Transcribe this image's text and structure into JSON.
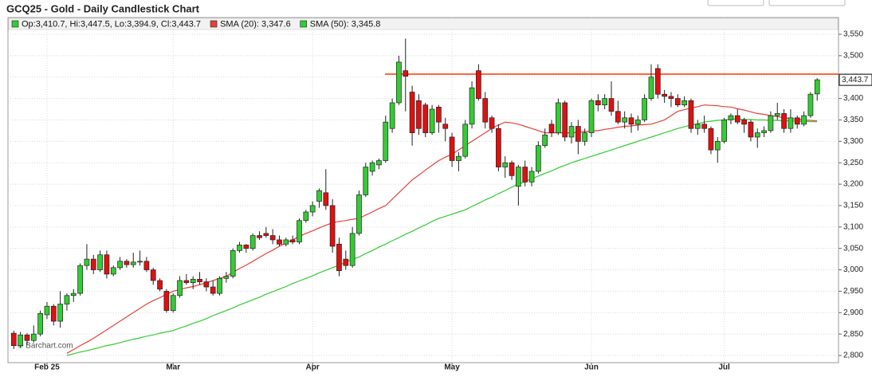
{
  "chart_data": {
    "type": "candlestick",
    "title": "GCQ25 - Gold - Daily Candlestick Chart",
    "ohlc_label": "Op:3,410.7, Hi:3,447.5, Lo:3,394.9, Cl:3,443.7",
    "last_label": "3,443.7",
    "watermark": "© Barchart.com",
    "up_color": "#33cc33",
    "down_color": "#e01010",
    "resistance": {
      "value": 3457,
      "color": "#ff3300"
    },
    "ylim": [
      2800,
      3594
    ],
    "yticks": [
      {
        "value": 2800,
        "label": "2,800"
      },
      {
        "value": 2850,
        "label": "2,850"
      },
      {
        "value": 2900,
        "label": "2,900"
      },
      {
        "value": 2950,
        "label": "2,950"
      },
      {
        "value": 3000,
        "label": "3,000"
      },
      {
        "value": 3050,
        "label": "3,050"
      },
      {
        "value": 3100,
        "label": "3,100"
      },
      {
        "value": 3150,
        "label": "3,150"
      },
      {
        "value": 3200,
        "label": "3,200"
      },
      {
        "value": 3250,
        "label": "3,250"
      },
      {
        "value": 3300,
        "label": "3,300"
      },
      {
        "value": 3350,
        "label": "3,350"
      },
      {
        "value": 3400,
        "label": "3,400"
      },
      {
        "value": 3450,
        "label": "3,450"
      },
      {
        "value": 3500,
        "label": "3,500"
      },
      {
        "value": 3550,
        "label": "3,550"
      }
    ],
    "grid": true,
    "categories": [
      null,
      null,
      null,
      null,
      null,
      "Feb 25",
      null,
      null,
      null,
      null,
      null,
      null,
      null,
      null,
      null,
      null,
      null,
      null,
      null,
      null,
      null,
      null,
      null,
      null,
      "Mar",
      null,
      null,
      null,
      null,
      null,
      null,
      null,
      null,
      null,
      null,
      null,
      null,
      null,
      null,
      null,
      null,
      null,
      null,
      null,
      null,
      "Apr",
      null,
      null,
      null,
      null,
      null,
      null,
      null,
      null,
      null,
      null,
      null,
      null,
      null,
      null,
      null,
      null,
      null,
      null,
      null,
      null,
      "May",
      null,
      null,
      null,
      null,
      null,
      null,
      null,
      null,
      null,
      null,
      null,
      null,
      null,
      null,
      null,
      null,
      null,
      null,
      null,
      null,
      "Jun",
      null,
      null,
      null,
      null,
      null,
      null,
      null,
      null,
      null,
      null,
      null,
      null,
      null,
      null,
      null,
      null,
      null,
      null,
      null,
      "Jul",
      null,
      null,
      null,
      null,
      null,
      null,
      null,
      null,
      null,
      null,
      null,
      null,
      null,
      null
    ],
    "candles": [
      {
        "o": 2852,
        "h": 2858,
        "l": 2815,
        "c": 2823
      },
      {
        "o": 2823,
        "h": 2855,
        "l": 2818,
        "c": 2848
      },
      {
        "o": 2848,
        "h": 2852,
        "l": 2825,
        "c": 2835
      },
      {
        "o": 2835,
        "h": 2870,
        "l": 2830,
        "c": 2850
      },
      {
        "o": 2850,
        "h": 2905,
        "l": 2845,
        "c": 2898
      },
      {
        "o": 2895,
        "h": 2925,
        "l": 2885,
        "c": 2915
      },
      {
        "o": 2915,
        "h": 2920,
        "l": 2870,
        "c": 2880
      },
      {
        "o": 2880,
        "h": 2950,
        "l": 2865,
        "c": 2920
      },
      {
        "o": 2920,
        "h": 2945,
        "l": 2905,
        "c": 2940
      },
      {
        "o": 2940,
        "h": 2955,
        "l": 2925,
        "c": 2945
      },
      {
        "o": 2945,
        "h": 3015,
        "l": 2940,
        "c": 3010
      },
      {
        "o": 3010,
        "h": 3060,
        "l": 3000,
        "c": 3025
      },
      {
        "o": 3025,
        "h": 3035,
        "l": 2990,
        "c": 3000
      },
      {
        "o": 3000,
        "h": 3045,
        "l": 2995,
        "c": 3035
      },
      {
        "o": 3035,
        "h": 3045,
        "l": 2980,
        "c": 2990
      },
      {
        "o": 2990,
        "h": 3010,
        "l": 2985,
        "c": 3005
      },
      {
        "o": 3005,
        "h": 3030,
        "l": 3000,
        "c": 3020
      },
      {
        "o": 3020,
        "h": 3025,
        "l": 3005,
        "c": 3012
      },
      {
        "o": 3012,
        "h": 3040,
        "l": 3005,
        "c": 3018
      },
      {
        "o": 3018,
        "h": 3045,
        "l": 3010,
        "c": 3020
      },
      {
        "o": 3020,
        "h": 3030,
        "l": 2995,
        "c": 3000
      },
      {
        "o": 3000,
        "h": 3005,
        "l": 2965,
        "c": 2975
      },
      {
        "o": 2975,
        "h": 2980,
        "l": 2950,
        "c": 2955
      },
      {
        "o": 2950,
        "h": 2955,
        "l": 2900,
        "c": 2905
      },
      {
        "o": 2905,
        "h": 2945,
        "l": 2900,
        "c": 2940
      },
      {
        "o": 2940,
        "h": 2985,
        "l": 2935,
        "c": 2975
      },
      {
        "o": 2975,
        "h": 2990,
        "l": 2965,
        "c": 2970
      },
      {
        "o": 2970,
        "h": 2985,
        "l": 2955,
        "c": 2978
      },
      {
        "o": 2978,
        "h": 2995,
        "l": 2965,
        "c": 2972
      },
      {
        "o": 2972,
        "h": 2980,
        "l": 2950,
        "c": 2960
      },
      {
        "o": 2960,
        "h": 2975,
        "l": 2940,
        "c": 2945
      },
      {
        "o": 2945,
        "h": 2985,
        "l": 2940,
        "c": 2980
      },
      {
        "o": 2980,
        "h": 2995,
        "l": 2970,
        "c": 2985
      },
      {
        "o": 2985,
        "h": 3050,
        "l": 2980,
        "c": 3045
      },
      {
        "o": 3045,
        "h": 3065,
        "l": 3040,
        "c": 3058
      },
      {
        "o": 3058,
        "h": 3060,
        "l": 3040,
        "c": 3050
      },
      {
        "o": 3050,
        "h": 3085,
        "l": 3045,
        "c": 3080
      },
      {
        "o": 3080,
        "h": 3090,
        "l": 3070,
        "c": 3075
      },
      {
        "o": 3085,
        "h": 3100,
        "l": 3075,
        "c": 3080
      },
      {
        "o": 3080,
        "h": 3095,
        "l": 3060,
        "c": 3070
      },
      {
        "o": 3070,
        "h": 3080,
        "l": 3055,
        "c": 3060
      },
      {
        "o": 3060,
        "h": 3075,
        "l": 3055,
        "c": 3070
      },
      {
        "o": 3070,
        "h": 3080,
        "l": 3060,
        "c": 3065
      },
      {
        "o": 3065,
        "h": 3120,
        "l": 3060,
        "c": 3115
      },
      {
        "o": 3115,
        "h": 3140,
        "l": 3110,
        "c": 3135
      },
      {
        "o": 3135,
        "h": 3160,
        "l": 3125,
        "c": 3150
      },
      {
        "o": 3160,
        "h": 3190,
        "l": 3145,
        "c": 3185
      },
      {
        "o": 3180,
        "h": 3235,
        "l": 3140,
        "c": 3150
      },
      {
        "o": 3150,
        "h": 3165,
        "l": 3040,
        "c": 3055
      },
      {
        "o": 3060,
        "h": 3075,
        "l": 2985,
        "c": 2998
      },
      {
        "o": 3025,
        "h": 3045,
        "l": 3000,
        "c": 3010
      },
      {
        "o": 3010,
        "h": 3100,
        "l": 3005,
        "c": 3085
      },
      {
        "o": 3085,
        "h": 3185,
        "l": 3080,
        "c": 3175
      },
      {
        "o": 3175,
        "h": 3250,
        "l": 3170,
        "c": 3240
      },
      {
        "o": 3230,
        "h": 3255,
        "l": 3220,
        "c": 3250
      },
      {
        "o": 3245,
        "h": 3260,
        "l": 3235,
        "c": 3255
      },
      {
        "o": 3255,
        "h": 3360,
        "l": 3250,
        "c": 3345
      },
      {
        "o": 3330,
        "h": 3400,
        "l": 3320,
        "c": 3390
      },
      {
        "o": 3390,
        "h": 3500,
        "l": 3385,
        "c": 3485
      },
      {
        "o": 3465,
        "h": 3540,
        "l": 3370,
        "c": 3452
      },
      {
        "o": 3415,
        "h": 3430,
        "l": 3290,
        "c": 3320
      },
      {
        "o": 3395,
        "h": 3410,
        "l": 3315,
        "c": 3330
      },
      {
        "o": 3385,
        "h": 3390,
        "l": 3310,
        "c": 3320
      },
      {
        "o": 3320,
        "h": 3385,
        "l": 3315,
        "c": 3375
      },
      {
        "o": 3380,
        "h": 3385,
        "l": 3320,
        "c": 3345
      },
      {
        "o": 3340,
        "h": 3355,
        "l": 3300,
        "c": 3330
      },
      {
        "o": 3310,
        "h": 3320,
        "l": 3240,
        "c": 3255
      },
      {
        "o": 3255,
        "h": 3275,
        "l": 3230,
        "c": 3265
      },
      {
        "o": 3265,
        "h": 3350,
        "l": 3260,
        "c": 3340
      },
      {
        "o": 3340,
        "h": 3440,
        "l": 3330,
        "c": 3425
      },
      {
        "o": 3465,
        "h": 3480,
        "l": 3395,
        "c": 3400
      },
      {
        "o": 3400,
        "h": 3415,
        "l": 3330,
        "c": 3345
      },
      {
        "o": 3355,
        "h": 3360,
        "l": 3320,
        "c": 3330
      },
      {
        "o": 3330,
        "h": 3340,
        "l": 3230,
        "c": 3240
      },
      {
        "o": 3240,
        "h": 3265,
        "l": 3215,
        "c": 3250
      },
      {
        "o": 3250,
        "h": 3255,
        "l": 3210,
        "c": 3220
      },
      {
        "o": 3195,
        "h": 3245,
        "l": 3150,
        "c": 3240
      },
      {
        "o": 3240,
        "h": 3255,
        "l": 3195,
        "c": 3205
      },
      {
        "o": 3205,
        "h": 3240,
        "l": 3195,
        "c": 3230
      },
      {
        "o": 3230,
        "h": 3300,
        "l": 3225,
        "c": 3290
      },
      {
        "o": 3290,
        "h": 3330,
        "l": 3285,
        "c": 3315
      },
      {
        "o": 3340,
        "h": 3350,
        "l": 3310,
        "c": 3320
      },
      {
        "o": 3320,
        "h": 3400,
        "l": 3315,
        "c": 3390
      },
      {
        "o": 3390,
        "h": 3395,
        "l": 3300,
        "c": 3310
      },
      {
        "o": 3310,
        "h": 3345,
        "l": 3295,
        "c": 3335
      },
      {
        "o": 3335,
        "h": 3350,
        "l": 3270,
        "c": 3300
      },
      {
        "o": 3300,
        "h": 3330,
        "l": 3290,
        "c": 3320
      },
      {
        "o": 3320,
        "h": 3400,
        "l": 3310,
        "c": 3395
      },
      {
        "o": 3395,
        "h": 3410,
        "l": 3370,
        "c": 3385
      },
      {
        "o": 3385,
        "h": 3410,
        "l": 3375,
        "c": 3400
      },
      {
        "o": 3400,
        "h": 3440,
        "l": 3360,
        "c": 3370
      },
      {
        "o": 3370,
        "h": 3395,
        "l": 3340,
        "c": 3345
      },
      {
        "o": 3345,
        "h": 3370,
        "l": 3330,
        "c": 3355
      },
      {
        "o": 3355,
        "h": 3365,
        "l": 3320,
        "c": 3340
      },
      {
        "o": 3340,
        "h": 3360,
        "l": 3325,
        "c": 3350
      },
      {
        "o": 3350,
        "h": 3410,
        "l": 3345,
        "c": 3400
      },
      {
        "o": 3400,
        "h": 3480,
        "l": 3395,
        "c": 3450
      },
      {
        "o": 3470,
        "h": 3480,
        "l": 3400,
        "c": 3410
      },
      {
        "o": 3410,
        "h": 3420,
        "l": 3390,
        "c": 3405
      },
      {
        "o": 3405,
        "h": 3415,
        "l": 3380,
        "c": 3400
      },
      {
        "o": 3400,
        "h": 3410,
        "l": 3380,
        "c": 3385
      },
      {
        "o": 3385,
        "h": 3405,
        "l": 3380,
        "c": 3395
      },
      {
        "o": 3395,
        "h": 3400,
        "l": 3320,
        "c": 3330
      },
      {
        "o": 3330,
        "h": 3350,
        "l": 3315,
        "c": 3340
      },
      {
        "o": 3340,
        "h": 3360,
        "l": 3320,
        "c": 3330
      },
      {
        "o": 3330,
        "h": 3335,
        "l": 3270,
        "c": 3280
      },
      {
        "o": 3280,
        "h": 3310,
        "l": 3250,
        "c": 3300
      },
      {
        "o": 3300,
        "h": 3355,
        "l": 3295,
        "c": 3350
      },
      {
        "o": 3350,
        "h": 3365,
        "l": 3340,
        "c": 3360
      },
      {
        "o": 3360,
        "h": 3375,
        "l": 3340,
        "c": 3345
      },
      {
        "o": 3350,
        "h": 3355,
        "l": 3320,
        "c": 3340
      },
      {
        "o": 3345,
        "h": 3350,
        "l": 3300,
        "c": 3310
      },
      {
        "o": 3310,
        "h": 3330,
        "l": 3285,
        "c": 3320
      },
      {
        "o": 3320,
        "h": 3335,
        "l": 3310,
        "c": 3325
      },
      {
        "o": 3325,
        "h": 3370,
        "l": 3320,
        "c": 3360
      },
      {
        "o": 3360,
        "h": 3390,
        "l": 3350,
        "c": 3365
      },
      {
        "o": 3365,
        "h": 3375,
        "l": 3320,
        "c": 3330
      },
      {
        "o": 3330,
        "h": 3375,
        "l": 3320,
        "c": 3355
      },
      {
        "o": 3355,
        "h": 3360,
        "l": 3330,
        "c": 3340
      },
      {
        "o": 3340,
        "h": 3370,
        "l": 3335,
        "c": 3360
      },
      {
        "o": 3360,
        "h": 3415,
        "l": 3355,
        "c": 3410
      },
      {
        "o": 3410.7,
        "h": 3447.5,
        "l": 3394.9,
        "c": 3443.7
      }
    ],
    "series": [
      {
        "name": "SMA (20): 3,347.6",
        "color": "#e8403a",
        "values": [
          null,
          null,
          null,
          null,
          null,
          null,
          null,
          null,
          2805,
          2814,
          2823,
          2831,
          2840,
          2850,
          2860,
          2870,
          2880,
          2890,
          2900,
          2910,
          2920,
          2928,
          2935,
          2943,
          2950,
          2954,
          2958,
          2961,
          2965,
          2970,
          2975,
          2980,
          2985,
          2994,
          3003,
          3011,
          3020,
          3029,
          3038,
          3046,
          3055,
          3063,
          3070,
          3078,
          3085,
          3091,
          3098,
          3104,
          3110,
          3113,
          3115,
          3118,
          3120,
          3128,
          3135,
          3143,
          3150,
          3165,
          3180,
          3195,
          3210,
          3221,
          3233,
          3244,
          3255,
          3263,
          3270,
          3280,
          3290,
          3300,
          3310,
          3320,
          3330,
          3338,
          3345,
          3343,
          3340,
          3335,
          3330,
          3325,
          3320,
          3320,
          3320,
          3320,
          3320,
          3321,
          3323,
          3324,
          3325,
          3328,
          3330,
          3333,
          3335,
          3336,
          3338,
          3339,
          3340,
          3345,
          3350,
          3360,
          3370,
          3374,
          3378,
          3381,
          3385,
          3384,
          3383,
          3381,
          3380,
          3376,
          3373,
          3369,
          3365,
          3363,
          3360,
          3358,
          3355,
          3353,
          3352,
          3350,
          3349,
          3347.6
        ]
      },
      {
        "name": "SMA (50): 3,345.8",
        "color": "#33cc33",
        "values": [
          null,
          null,
          null,
          null,
          null,
          null,
          null,
          null,
          2800,
          2804,
          2808,
          2811,
          2815,
          2819,
          2823,
          2826,
          2830,
          2834,
          2838,
          2841,
          2845,
          2848,
          2852,
          2855,
          2858,
          2864,
          2869,
          2875,
          2880,
          2886,
          2893,
          2899,
          2905,
          2911,
          2918,
          2924,
          2930,
          2936,
          2943,
          2949,
          2955,
          2961,
          2968,
          2974,
          2980,
          2986,
          2993,
          2999,
          3005,
          3011,
          3018,
          3024,
          3030,
          3038,
          3045,
          3053,
          3060,
          3068,
          3075,
          3083,
          3090,
          3098,
          3105,
          3113,
          3120,
          3125,
          3130,
          3135,
          3140,
          3148,
          3155,
          3163,
          3170,
          3178,
          3185,
          3193,
          3200,
          3206,
          3213,
          3219,
          3225,
          3231,
          3238,
          3244,
          3250,
          3255,
          3260,
          3265,
          3270,
          3275,
          3280,
          3285,
          3290,
          3295,
          3300,
          3305,
          3310,
          3315,
          3320,
          3325,
          3330,
          3334,
          3338,
          3341,
          3345,
          3347,
          3349,
          3350,
          3352,
          3352,
          3351,
          3351,
          3350,
          3350,
          3349,
          3349,
          3348,
          3348,
          3347,
          3347,
          3346,
          3345.8
        ]
      }
    ]
  }
}
